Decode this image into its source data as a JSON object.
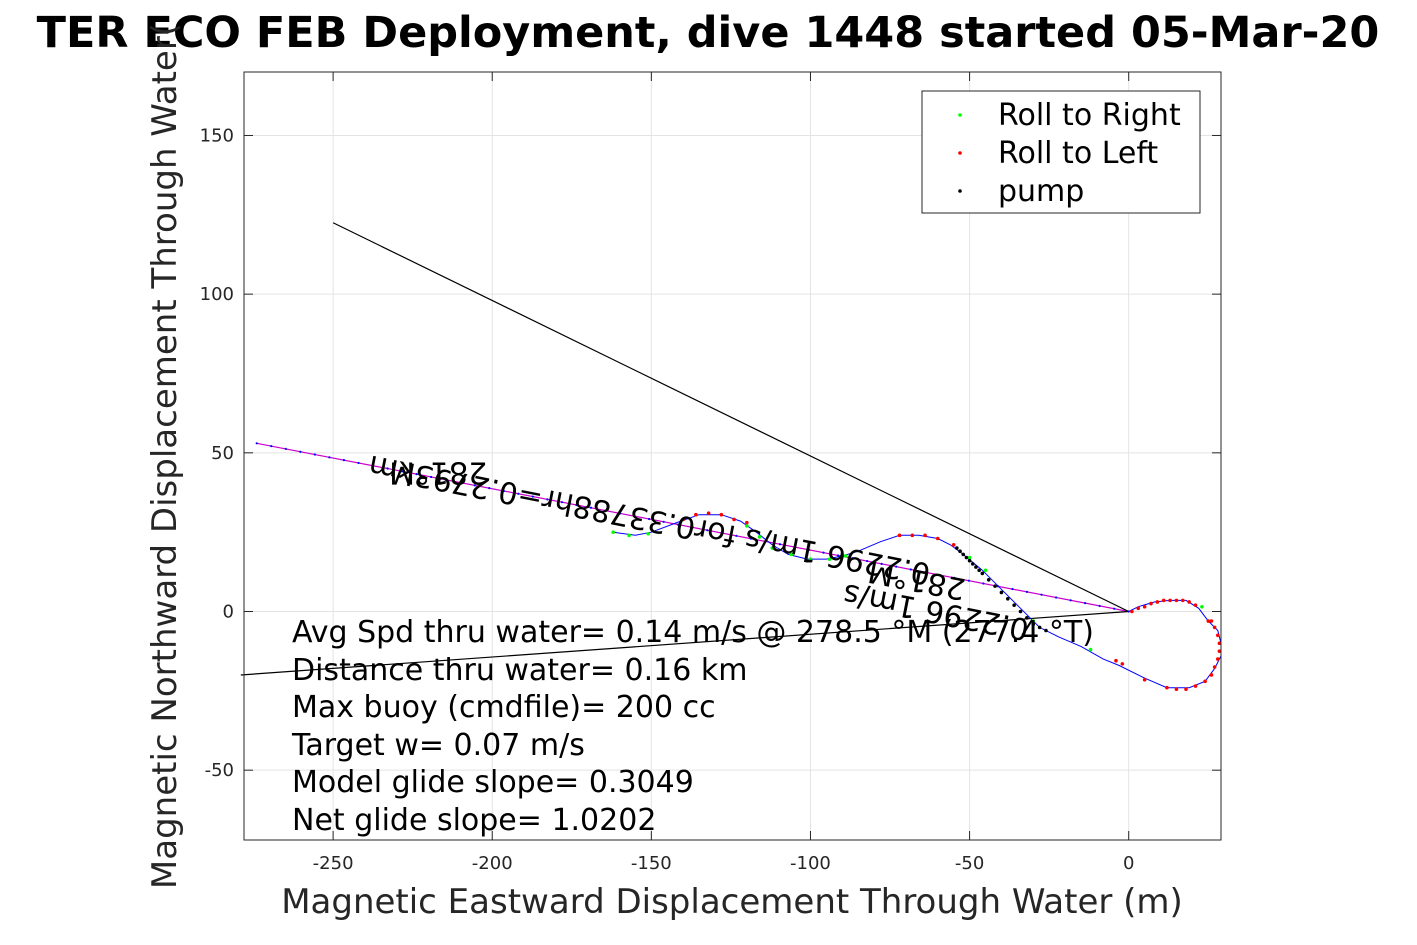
{
  "chart_data": {
    "type": "scatter",
    "title": "TER ECO FEB Deployment, dive 1448 started 05-Mar-20",
    "xlabel": "Magnetic Eastward Displacement Through Water (m)",
    "ylabel": "Magnetic Northward Displacement Through Water(",
    "xlim": [
      -278,
      29
    ],
    "ylim": [
      -72,
      170
    ],
    "xticks": [
      -250,
      -200,
      -150,
      -100,
      -50,
      0
    ],
    "yticks": [
      -50,
      0,
      50,
      100,
      150
    ],
    "grid": true,
    "legend_placement": "top-right",
    "legend": [
      {
        "label": "Roll to Right",
        "color": "#00ff00"
      },
      {
        "label": "Roll to Left",
        "color": "#ff0000"
      },
      {
        "label": "pump",
        "color": "#000000"
      }
    ],
    "track": [
      [
        -162,
        25
      ],
      [
        -155,
        24
      ],
      [
        -150,
        25
      ],
      [
        -142,
        28
      ],
      [
        -135,
        30.5
      ],
      [
        -128,
        30.5
      ],
      [
        -122,
        28.5
      ],
      [
        -117,
        25
      ],
      [
        -112,
        21
      ],
      [
        -107,
        18
      ],
      [
        -101,
        16.5
      ],
      [
        -95,
        16.5
      ],
      [
        -90,
        17.5
      ],
      [
        -85,
        19
      ],
      [
        -78,
        22
      ],
      [
        -72,
        24
      ],
      [
        -66,
        24
      ],
      [
        -60,
        23
      ],
      [
        -56,
        21
      ],
      [
        -52,
        18
      ],
      [
        -46,
        13
      ],
      [
        -40,
        7
      ],
      [
        -34,
        1
      ],
      [
        -28,
        -5
      ],
      [
        -22,
        -8
      ],
      [
        -15,
        -11
      ],
      [
        -8,
        -15
      ],
      [
        -3,
        -17
      ],
      [
        5,
        -21
      ],
      [
        12,
        -24
      ],
      [
        19,
        -24
      ],
      [
        24,
        -22
      ],
      [
        27,
        -18
      ],
      [
        29,
        -14
      ],
      [
        29,
        -10
      ],
      [
        28,
        -6
      ],
      [
        25,
        -3
      ],
      [
        22,
        1
      ],
      [
        18,
        3.5
      ],
      [
        13,
        3.5
      ],
      [
        8,
        3
      ],
      [
        3,
        1.5
      ],
      [
        0,
        0
      ]
    ],
    "roll_right": [
      [
        -162,
        25
      ],
      [
        -157,
        24
      ],
      [
        -151,
        24.5
      ],
      [
        -120,
        27
      ],
      [
        -116,
        23.5
      ],
      [
        -112,
        20
      ],
      [
        -106,
        18
      ],
      [
        -100,
        16.5
      ],
      [
        -94,
        16.5
      ],
      [
        -89,
        17.5
      ],
      [
        -50,
        17
      ],
      [
        -45,
        13
      ],
      [
        -30,
        -3
      ],
      [
        -12,
        -12
      ],
      [
        23,
        1.5
      ]
    ],
    "roll_left": [
      [
        -140,
        29
      ],
      [
        -136,
        30.5
      ],
      [
        -132,
        31
      ],
      [
        -128,
        30.5
      ],
      [
        -124,
        29
      ],
      [
        -120,
        28
      ],
      [
        -72,
        24
      ],
      [
        -68,
        24
      ],
      [
        -64,
        24
      ],
      [
        -60,
        23
      ],
      [
        -55,
        21
      ],
      [
        -2,
        -16.5
      ],
      [
        -4,
        -15.5
      ],
      [
        5,
        -21.5
      ],
      [
        12,
        -24
      ],
      [
        15,
        -24.5
      ],
      [
        18,
        -24.5
      ],
      [
        21,
        -23.5
      ],
      [
        24,
        -22
      ],
      [
        26,
        -20
      ],
      [
        27,
        -17.5
      ],
      [
        28,
        -15
      ],
      [
        28.5,
        -12.5
      ],
      [
        28.5,
        -10
      ],
      [
        28,
        -7.5
      ],
      [
        27,
        -5
      ],
      [
        25,
        -3
      ],
      [
        1,
        0
      ],
      [
        3,
        1
      ],
      [
        5,
        1.5
      ],
      [
        7,
        2.5
      ],
      [
        9,
        3
      ],
      [
        11,
        3.5
      ],
      [
        13,
        3.5
      ],
      [
        15,
        3.5
      ],
      [
        17,
        3.5
      ],
      [
        19,
        3
      ],
      [
        21,
        2
      ],
      [
        26,
        -3
      ]
    ],
    "pump": [
      [
        -54,
        20
      ],
      [
        -52,
        18
      ],
      [
        -50,
        16
      ],
      [
        -48,
        14
      ],
      [
        -46,
        12
      ],
      [
        -44,
        10
      ],
      [
        -42,
        8
      ],
      [
        -40,
        6
      ],
      [
        -38,
        4
      ],
      [
        -36,
        2
      ],
      [
        -34,
        0
      ],
      [
        -32,
        -2
      ],
      [
        -30,
        -4
      ],
      [
        -28,
        -5
      ],
      [
        -26,
        -6
      ],
      [
        -53,
        19
      ],
      [
        -51,
        17
      ],
      [
        -49,
        15
      ],
      [
        -47,
        13
      ]
    ],
    "lines": [
      {
        "name": "heading-line",
        "color": "#cc00cc",
        "points": [
          [
            -274,
            53
          ],
          [
            0,
            0
          ]
        ]
      },
      {
        "name": "current-line",
        "color": "#000000",
        "points": [
          [
            -250,
            122.5
          ],
          [
            0,
            0
          ]
        ]
      },
      {
        "name": "depth-avg-line",
        "color": "#000000",
        "points": [
          [
            -279,
            -20
          ],
          [
            0,
            0
          ]
        ]
      }
    ],
    "annotations": [
      {
        "text": "281°M",
        "x": -217,
        "y": 47,
        "angle": 180
      },
      {
        "text": "0.2296 1m/s for0.33788hr=0.2793km",
        "x": -150,
        "y": 32,
        "angle": 191
      },
      {
        "text": "281°M",
        "x": -66,
        "y": 13,
        "angle": 191
      },
      {
        "text": "0.2296 1m/s",
        "x": -60,
        "y": 3,
        "angle": 191
      }
    ],
    "stats": [
      "Avg Spd thru water=  0.14 m/s @ 278.5 °M (277.4 °T)",
      "Distance thru water=  0.16 km",
      "Max buoy (cmdfile)= 200 cc",
      "Target w= 0.07 m/s",
      "Model glide slope= 0.3049",
      "Net glide slope= 1.0202"
    ]
  }
}
